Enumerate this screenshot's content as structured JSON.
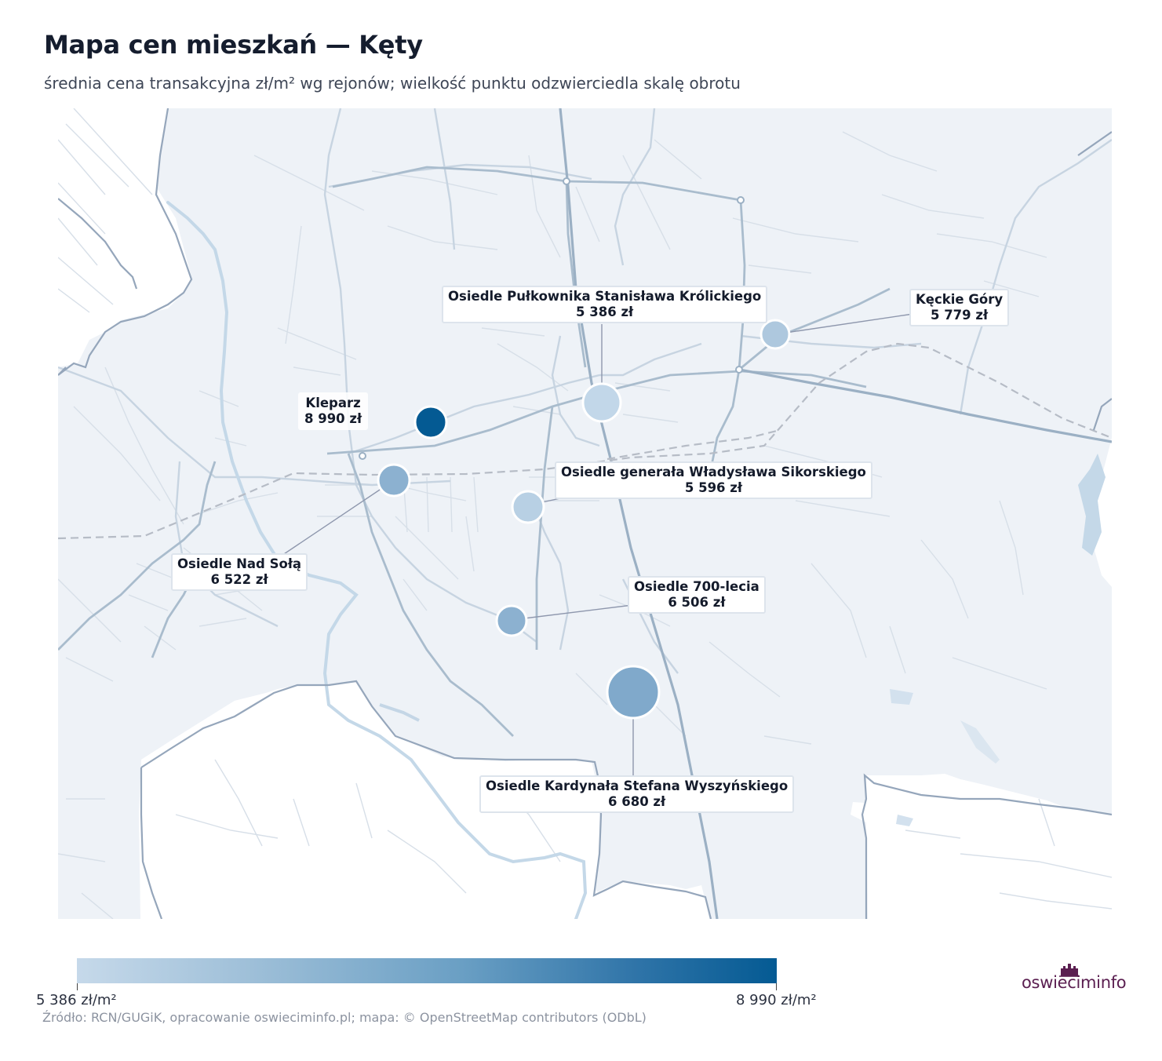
{
  "title": "Mapa cen mieszkań — Kęty",
  "subtitle": "średnia cena transakcyjna zł/m² wg rejonów; wielkość punktu odzwierciedla skalę obrotu",
  "districts": [
    {
      "name": "Osiedle Pułkownika Stanisława Królickiego",
      "price": "5 386 zł",
      "color": "#c2d7e9"
    },
    {
      "name": "Kęckie Góry",
      "price": "5 779 zł",
      "color": "#aec8de"
    },
    {
      "name": "Kleparz",
      "price": "8 990 zł",
      "color": "#045a93"
    },
    {
      "name": "Osiedle generała Władysława Sikorskiego",
      "price": "5 596 zł",
      "color": "#b8d0e4"
    },
    {
      "name": "Osiedle Nad Sołą",
      "price": "6 522 zł",
      "color": "#8cb1d0"
    },
    {
      "name": "Osiedle 700-lecia",
      "price": "6 506 zł",
      "color": "#8cb1d0"
    },
    {
      "name": "Osiedle Kardynała Stefana Wyszyńskiego",
      "price": "6 680 zł",
      "color": "#80a9cb"
    }
  ],
  "legend": {
    "min_label": "5 386 zł/m²",
    "max_label": "8 990 zł/m²",
    "min_color": "#c6d9ea",
    "max_color": "#045a93"
  },
  "source": "Źródło: RCN/GUGiK, opracowanie oswieciminfo.pl; mapa: © OpenStreetMap contributors (ODbL)",
  "logo": {
    "text": "oswieciminfo",
    "color": "#5a1e50"
  }
}
